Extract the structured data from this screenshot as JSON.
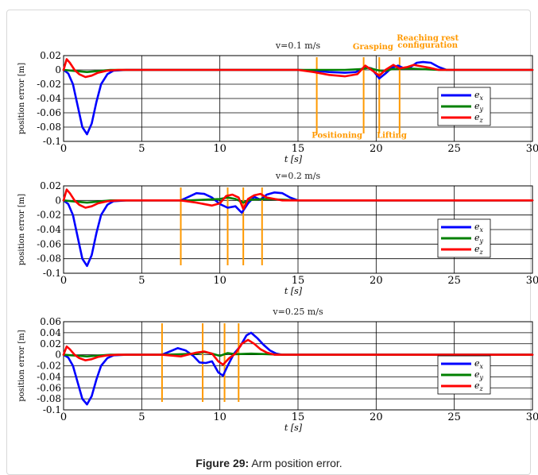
{
  "caption": {
    "label": "Figure 29:",
    "text": "Arm position error."
  },
  "chart_data": [
    {
      "type": "line",
      "title": "v=0.1 m/s",
      "xlabel": "t [s]",
      "ylabel": "position error [m]",
      "xlim": [
        0,
        30
      ],
      "ylim": [
        -0.1,
        0.02
      ],
      "xticks": [
        0,
        5,
        10,
        15,
        20,
        25,
        30
      ],
      "yticks": [
        0.02,
        0,
        -0.02,
        -0.04,
        -0.06,
        -0.08,
        -0.1
      ],
      "ytick_labels": [
        "0.02",
        "0",
        "-0.02",
        "-0.04",
        "-0.06",
        "-0.08",
        "-0.1"
      ],
      "grid": true,
      "legend": "right",
      "series": [
        {
          "name": "e_x",
          "color": "#0000ff",
          "x": [
            0,
            0.3,
            0.6,
            0.9,
            1.2,
            1.5,
            1.8,
            2.1,
            2.4,
            2.8,
            3.2,
            4,
            15,
            16,
            17,
            18,
            18.7,
            19.3,
            19.7,
            20.2,
            20.6,
            21,
            21.4,
            21.8,
            22.2,
            22.6,
            23,
            23.5,
            24,
            24.5,
            30
          ],
          "y": [
            0,
            -0.005,
            -0.02,
            -0.05,
            -0.08,
            -0.09,
            -0.075,
            -0.045,
            -0.02,
            -0.006,
            -0.001,
            0,
            0,
            -0.001,
            -0.003,
            -0.004,
            -0.003,
            0.004,
            0.002,
            -0.012,
            -0.005,
            0.003,
            0.006,
            0.002,
            0.004,
            0.01,
            0.011,
            0.01,
            0.004,
            0,
            0
          ]
        },
        {
          "name": "e_y",
          "color": "#008000",
          "x": [
            0,
            0.5,
            1,
            1.5,
            2,
            3,
            18,
            19,
            19.5,
            20,
            20.5,
            21,
            22,
            24,
            30
          ],
          "y": [
            0,
            -0.001,
            -0.002,
            -0.003,
            -0.002,
            0,
            0,
            0.001,
            0.003,
            0,
            -0.002,
            0.001,
            0.002,
            0,
            0
          ]
        },
        {
          "name": "e_z",
          "color": "#ff0000",
          "x": [
            0,
            0.2,
            0.4,
            0.7,
            1,
            1.4,
            1.8,
            2.2,
            2.8,
            3.5,
            15,
            16,
            17,
            18,
            18.8,
            19.3,
            19.7,
            20.2,
            20.6,
            21.1,
            21.5,
            22,
            22.4,
            22.9,
            23.4,
            24,
            30
          ],
          "y": [
            0,
            0.015,
            0.01,
            0,
            -0.006,
            -0.01,
            -0.008,
            -0.004,
            -0.001,
            0,
            0,
            -0.003,
            -0.007,
            -0.009,
            -0.006,
            0.006,
            0,
            -0.008,
            0,
            0.007,
            0.002,
            0.004,
            0.007,
            0.005,
            0.003,
            0,
            0
          ]
        }
      ],
      "markers": [
        16.2,
        19.2,
        20.2,
        21.5
      ],
      "marker_color": "#ff9900",
      "annotations": [
        {
          "text": "Reaching rest",
          "x": 23.3,
          "y": 0.041
        },
        {
          "text": "configuration",
          "x": 23.3,
          "y": 0.031
        },
        {
          "text": "Grasping",
          "x": 19.8,
          "y": 0.029
        },
        {
          "text": "Positioning",
          "x": 17.5,
          "y": -0.095
        },
        {
          "text": "Lifting",
          "x": 21.0,
          "y": -0.095
        }
      ]
    },
    {
      "type": "line",
      "title": "v=0.2 m/s",
      "xlabel": "t [s]",
      "ylabel": "position error [m]",
      "xlim": [
        0,
        30
      ],
      "ylim": [
        -0.1,
        0.02
      ],
      "xticks": [
        0,
        5,
        10,
        15,
        20,
        25,
        30
      ],
      "yticks": [
        0.02,
        0,
        -0.02,
        -0.04,
        -0.06,
        -0.08,
        -0.1
      ],
      "ytick_labels": [
        "0.02",
        "0",
        "-0.02",
        "-0.04",
        "-0.06",
        "-0.08",
        "-0.1"
      ],
      "grid": true,
      "legend": "right",
      "series": [
        {
          "name": "e_x",
          "color": "#0000ff",
          "x": [
            0,
            0.3,
            0.6,
            0.9,
            1.2,
            1.5,
            1.8,
            2.1,
            2.4,
            2.8,
            3.2,
            4,
            7.5,
            8,
            8.5,
            9,
            9.5,
            10,
            10.5,
            11,
            11.4,
            11.8,
            12.2,
            12.6,
            13,
            13.5,
            14,
            14.5,
            15,
            30
          ],
          "y": [
            0,
            -0.005,
            -0.02,
            -0.05,
            -0.08,
            -0.09,
            -0.075,
            -0.045,
            -0.02,
            -0.006,
            -0.001,
            0,
            0,
            0.005,
            0.01,
            0.009,
            0.004,
            -0.005,
            -0.01,
            -0.008,
            -0.017,
            -0.004,
            0.005,
            0.001,
            0.008,
            0.011,
            0.01,
            0.004,
            0,
            0
          ]
        },
        {
          "name": "e_y",
          "color": "#008000",
          "x": [
            0,
            0.5,
            1,
            1.5,
            2,
            3,
            8,
            9,
            10,
            10.5,
            11,
            11.5,
            12,
            13,
            15,
            30
          ],
          "y": [
            0,
            -0.001,
            -0.002,
            -0.003,
            -0.002,
            0,
            0,
            0.001,
            0.002,
            0.004,
            0.002,
            -0.003,
            0.001,
            0.002,
            0,
            0
          ]
        },
        {
          "name": "e_z",
          "color": "#ff0000",
          "x": [
            0,
            0.2,
            0.4,
            0.7,
            1,
            1.4,
            1.8,
            2.2,
            2.8,
            3.5,
            7.5,
            8.5,
            9.5,
            10,
            10.4,
            10.8,
            11.2,
            11.5,
            11.8,
            12.2,
            12.6,
            13,
            13.5,
            14,
            30
          ],
          "y": [
            0,
            0.015,
            0.01,
            0,
            -0.006,
            -0.01,
            -0.008,
            -0.004,
            -0.001,
            0,
            0,
            -0.003,
            -0.007,
            -0.004,
            0.006,
            0.008,
            0.004,
            -0.012,
            0.002,
            0.007,
            0.009,
            0.004,
            0.002,
            0,
            0
          ]
        }
      ],
      "markers": [
        7.5,
        10.5,
        11.5,
        12.7
      ],
      "marker_color": "#ff9900",
      "annotations": []
    },
    {
      "type": "line",
      "title": "v=0.25 m/s",
      "xlabel": "t [s]",
      "ylabel": "position error [m]",
      "xlim": [
        0,
        30
      ],
      "ylim": [
        -0.1,
        0.06
      ],
      "xticks": [
        0,
        5,
        10,
        15,
        20,
        25,
        30
      ],
      "yticks": [
        0.06,
        0.04,
        0.02,
        0,
        -0.02,
        -0.04,
        -0.06,
        -0.08,
        -0.1
      ],
      "ytick_labels": [
        "0.06",
        "0.04",
        "0.02",
        "0",
        "-0.02",
        "-0.04",
        "-0.06",
        "-0.08",
        "-0.1"
      ],
      "grid": true,
      "legend": "right",
      "series": [
        {
          "name": "e_x",
          "color": "#0000ff",
          "x": [
            0,
            0.3,
            0.6,
            0.9,
            1.2,
            1.5,
            1.8,
            2.1,
            2.4,
            2.8,
            3.2,
            4,
            6.3,
            6.8,
            7.3,
            7.8,
            8.3,
            8.7,
            9.1,
            9.5,
            9.9,
            10.2,
            10.5,
            10.9,
            11.3,
            11.7,
            12,
            12.4,
            12.8,
            13.2,
            13.6,
            14,
            30
          ],
          "y": [
            0,
            -0.005,
            -0.02,
            -0.05,
            -0.08,
            -0.09,
            -0.075,
            -0.045,
            -0.02,
            -0.006,
            -0.001,
            0,
            0,
            0.006,
            0.012,
            0.008,
            -0.002,
            -0.014,
            -0.015,
            -0.012,
            -0.032,
            -0.038,
            -0.02,
            0.002,
            0.015,
            0.035,
            0.04,
            0.03,
            0.018,
            0.008,
            0.002,
            0,
            0
          ]
        },
        {
          "name": "e_y",
          "color": "#008000",
          "x": [
            0,
            0.5,
            1,
            1.5,
            2,
            3,
            6.5,
            7.5,
            8.5,
            9,
            9.5,
            10,
            10.5,
            11,
            12,
            14,
            30
          ],
          "y": [
            0,
            -0.001,
            -0.002,
            -0.003,
            -0.002,
            0,
            0,
            0.001,
            0.002,
            0.005,
            0.002,
            -0.002,
            0.003,
            0.001,
            0.002,
            0,
            0
          ]
        },
        {
          "name": "e_z",
          "color": "#ff0000",
          "x": [
            0,
            0.2,
            0.4,
            0.7,
            1,
            1.4,
            1.8,
            2.2,
            2.8,
            3.5,
            6.3,
            7.5,
            8.5,
            9,
            9.5,
            9.9,
            10.2,
            10.6,
            11,
            11.4,
            11.8,
            12.2,
            12.6,
            13,
            13.5,
            30
          ],
          "y": [
            0,
            0.015,
            0.01,
            0,
            -0.006,
            -0.01,
            -0.008,
            -0.004,
            -0.001,
            0,
            0,
            -0.003,
            0.004,
            0.006,
            0.002,
            -0.012,
            -0.018,
            -0.006,
            0.002,
            0.02,
            0.027,
            0.02,
            0.01,
            0.004,
            0,
            0
          ]
        }
      ],
      "markers": [
        6.3,
        8.9,
        10.3,
        11.2
      ],
      "marker_color": "#ff9900",
      "annotations": []
    }
  ]
}
